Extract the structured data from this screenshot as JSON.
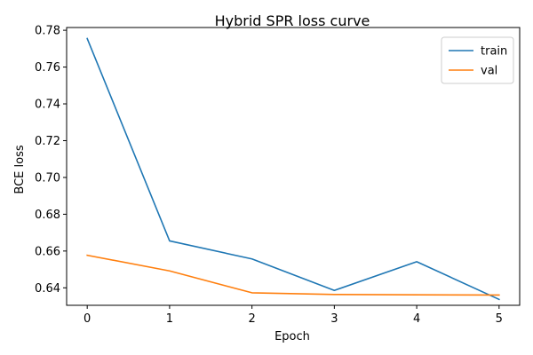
{
  "chart_data": {
    "type": "line",
    "title": "Hybrid SPR loss curve",
    "xlabel": "Epoch",
    "ylabel": "BCE loss",
    "x": [
      0,
      1,
      2,
      3,
      4,
      5
    ],
    "xticks": [
      "0",
      "1",
      "2",
      "3",
      "4",
      "5"
    ],
    "yticks": [
      "0.64",
      "0.66",
      "0.68",
      "0.70",
      "0.72",
      "0.74",
      "0.76",
      "0.78"
    ],
    "ytick_values": [
      0.64,
      0.66,
      0.68,
      0.7,
      0.72,
      0.74,
      0.76,
      0.78
    ],
    "xlim": [
      -0.25,
      5.25
    ],
    "ylim": [
      0.6305,
      0.7815
    ],
    "grid": false,
    "legend_position": "top-right",
    "series": [
      {
        "name": "train",
        "color": "#1f77b4",
        "values": [
          0.7755,
          0.6655,
          0.6557,
          0.6386,
          0.6542,
          0.6337
        ]
      },
      {
        "name": "val",
        "color": "#ff7f0e",
        "values": [
          0.6577,
          0.6492,
          0.6373,
          0.6364,
          0.6362,
          0.6361
        ]
      }
    ]
  }
}
